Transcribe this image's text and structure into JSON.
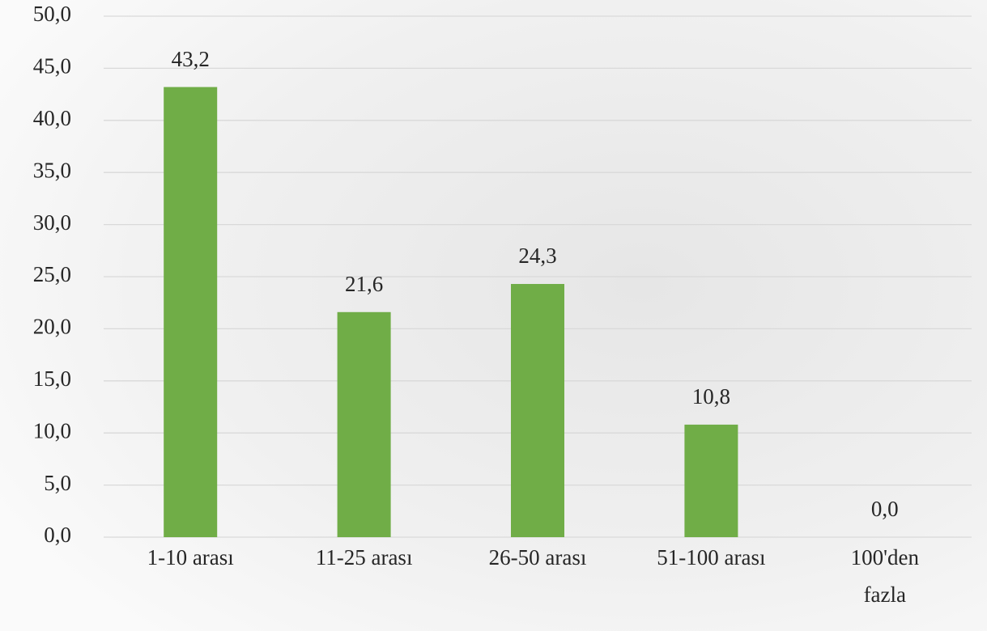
{
  "chart_data": {
    "type": "bar",
    "categories": [
      "1-10 arası",
      "11-25 arası",
      "26-50 arası",
      "51-100 arası",
      "100'den\nfazla"
    ],
    "values": [
      43.2,
      21.6,
      24.3,
      10.8,
      0.0
    ],
    "value_labels": [
      "43,2",
      "21,6",
      "24,3",
      "10,8",
      "0,0"
    ],
    "color": "#70ad47",
    "ylim": [
      0,
      50
    ],
    "yticks": [
      {
        "value": 0,
        "label": "0,0"
      },
      {
        "value": 5,
        "label": "5,0"
      },
      {
        "value": 10,
        "label": "10,0"
      },
      {
        "value": 15,
        "label": "15,0"
      },
      {
        "value": 20,
        "label": "20,0"
      },
      {
        "value": 25,
        "label": "25,0"
      },
      {
        "value": 30,
        "label": "30,0"
      },
      {
        "value": 35,
        "label": "35,0"
      },
      {
        "value": 40,
        "label": "40,0"
      },
      {
        "value": 45,
        "label": "45,0"
      },
      {
        "value": 50,
        "label": "50,0"
      }
    ],
    "grid": true
  }
}
